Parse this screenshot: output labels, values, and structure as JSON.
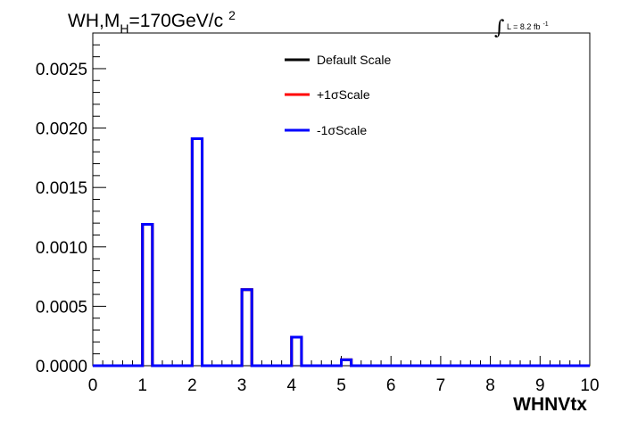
{
  "chart_data": {
    "type": "line",
    "title_prefix": "WH,M",
    "title_sub": "H",
    "title_suffix": "=170GeV/c",
    "title_sup": "2",
    "lumi_symbol": "∫",
    "lumi_text": "L = 8.2 fb",
    "lumi_sup": "-1",
    "xlabel": "WHNVtx",
    "ylabel": "",
    "xlim": [
      0,
      10
    ],
    "ylim": [
      0,
      0.0028
    ],
    "x_ticks": [
      "0",
      "1",
      "2",
      "3",
      "4",
      "5",
      "6",
      "7",
      "8",
      "9",
      "10"
    ],
    "y_ticks": [
      "0.0000",
      "0.0005",
      "0.0010",
      "0.0015",
      "0.0020",
      "0.0025"
    ],
    "y_tick_values": [
      0,
      0.0005,
      0.001,
      0.0015,
      0.002,
      0.0025
    ],
    "bin_edges": [
      1,
      1.2,
      2,
      2.2,
      3,
      3.2,
      4,
      4.2,
      5,
      5.2
    ],
    "bins": [
      {
        "lo": 1.0,
        "hi": 1.2,
        "value": 0.00119
      },
      {
        "lo": 2.0,
        "hi": 2.2,
        "value": 0.00191
      },
      {
        "lo": 3.0,
        "hi": 3.2,
        "value": 0.00064
      },
      {
        "lo": 4.0,
        "hi": 4.2,
        "value": 0.00024
      },
      {
        "lo": 5.0,
        "hi": 5.2,
        "value": 5e-05
      }
    ],
    "series": [
      {
        "name": "Default Scale",
        "color": "#000000"
      },
      {
        "name": "+1σScale",
        "color": "#ff0000"
      },
      {
        "name": "-1σScale",
        "color": "#0000ff"
      }
    ]
  }
}
